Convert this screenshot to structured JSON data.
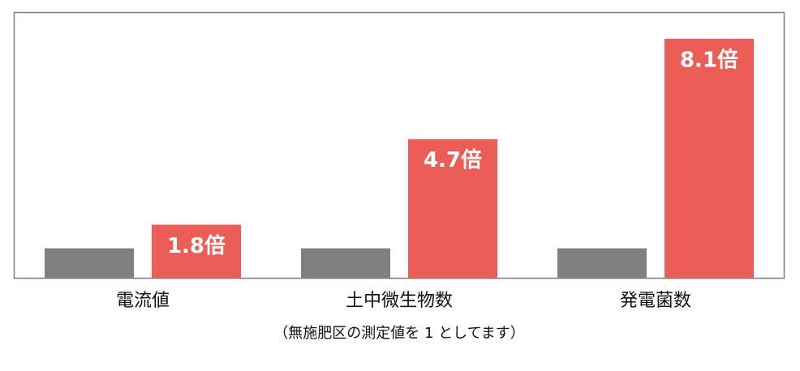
{
  "chart_data": {
    "type": "bar",
    "categories": [
      "電流値",
      "土中微生物数",
      "発電菌数"
    ],
    "series": [
      {
        "color": "#808080",
        "values": [
          1,
          1,
          1
        ]
      },
      {
        "color": "#eb5e58",
        "values": [
          1.8,
          4.7,
          8.1
        ],
        "value_labels": [
          "1.8倍",
          "4.7倍",
          "8.1倍"
        ]
      }
    ],
    "ylim": [
      0,
      9
    ],
    "note": "（無施肥区の測定値を 1 としてます）"
  }
}
